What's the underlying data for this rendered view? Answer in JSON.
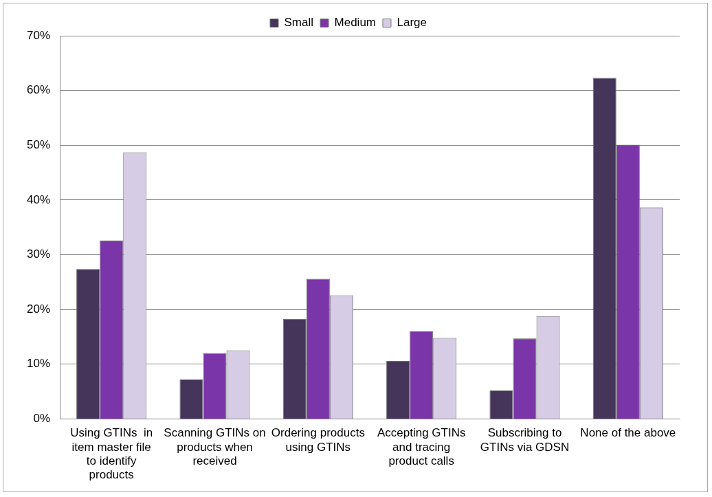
{
  "chart_data": {
    "type": "bar",
    "categories": [
      "Using GTINs  in item master file to identify products",
      "Scanning GTINs on products when received",
      "Ordering products using GTINs",
      "Accepting GTINs and tracing product calls",
      "Subscribing to GTINs via GDSN",
      "None of the above"
    ],
    "series": [
      {
        "name": "Small",
        "color": "#45355a",
        "values": [
          27.4,
          7.2,
          18.3,
          10.6,
          5.2,
          62.3
        ]
      },
      {
        "name": "Medium",
        "color": "#7a35a8",
        "values": [
          32.6,
          12.0,
          25.6,
          16.0,
          14.7,
          50.1
        ]
      },
      {
        "name": "Large",
        "color": "#d6cce6",
        "values": [
          48.7,
          12.5,
          22.6,
          14.8,
          18.8,
          38.6
        ]
      }
    ],
    "ylim": [
      0,
      70
    ],
    "yticks": [
      {
        "value": 0,
        "label": "0%"
      },
      {
        "value": 10,
        "label": "10%"
      },
      {
        "value": 20,
        "label": "20%"
      },
      {
        "value": 30,
        "label": "30%"
      },
      {
        "value": 40,
        "label": "40%"
      },
      {
        "value": 50,
        "label": "50%"
      },
      {
        "value": 60,
        "label": "60%"
      },
      {
        "value": 70,
        "label": "70%"
      }
    ],
    "grid": "y",
    "legend": "top"
  }
}
